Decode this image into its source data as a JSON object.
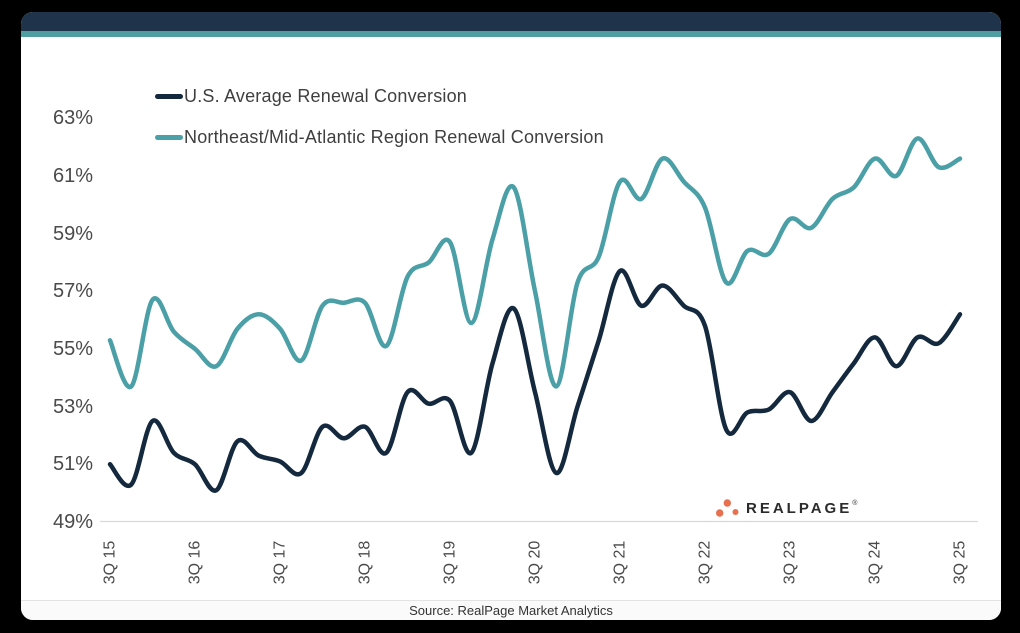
{
  "page": {
    "background_color": "#000000"
  },
  "header": {
    "bar_color": "#1F334A",
    "accent_color": "#4F9FA2"
  },
  "logo": {
    "text": "REALPAGE",
    "mark": "®",
    "dot_color": "#E8704E",
    "text_color": "#2b2b2b"
  },
  "footer": {
    "source_text": "Source: RealPage Market Analytics"
  },
  "chart_data": {
    "type": "line",
    "title": "",
    "xlabel": "",
    "ylabel": "",
    "grid": "none",
    "legend_position": "top-left",
    "axis_line_color": "#d9d9d9",
    "ylim": [
      49,
      63
    ],
    "y_ticks": [
      "63%",
      "61%",
      "59%",
      "57%",
      "55%",
      "53%",
      "51%",
      "49%"
    ],
    "x_tick_every": 4,
    "x_tick_labels_shown": [
      "3Q 15",
      "3Q 16",
      "3Q 17",
      "3Q 18",
      "3Q 19",
      "3Q 20",
      "3Q 21",
      "3Q 22",
      "3Q 23",
      "3Q 24",
      "3Q 25"
    ],
    "x": [
      "3Q 15",
      "4Q 15",
      "1Q 16",
      "2Q 16",
      "3Q 16",
      "4Q 16",
      "1Q 17",
      "2Q 17",
      "3Q 17",
      "4Q 17",
      "1Q 18",
      "2Q 18",
      "3Q 18",
      "4Q 18",
      "1Q 19",
      "2Q 19",
      "3Q 19",
      "4Q 19",
      "1Q 20",
      "2Q 20",
      "3Q 20",
      "4Q 20",
      "1Q 21",
      "2Q 21",
      "3Q 21",
      "4Q 21",
      "1Q 22",
      "2Q 22",
      "3Q 22",
      "4Q 22",
      "1Q 23",
      "2Q 23",
      "3Q 23",
      "4Q 23",
      "1Q 24",
      "2Q 24",
      "3Q 24",
      "4Q 24",
      "1Q 25",
      "2Q 25",
      "3Q 25"
    ],
    "series": [
      {
        "name": "U.S. Average Renewal Conversion",
        "color": "#14293D",
        "values": [
          51.0,
          50.3,
          52.5,
          51.4,
          51.0,
          50.1,
          51.8,
          51.3,
          51.1,
          50.7,
          52.3,
          51.9,
          52.3,
          51.4,
          53.5,
          53.1,
          53.2,
          51.4,
          54.5,
          56.4,
          53.5,
          50.7,
          53.0,
          55.3,
          57.7,
          56.5,
          57.2,
          56.5,
          55.8,
          52.2,
          52.8,
          52.9,
          53.5,
          52.5,
          53.5,
          54.5,
          55.4,
          54.4,
          55.4,
          55.2,
          56.2
        ]
      },
      {
        "name": "Northeast/Mid-Atlantic Region Renewal Conversion",
        "color": "#4B9FA6",
        "values": [
          55.3,
          53.7,
          56.7,
          55.6,
          55.0,
          54.4,
          55.7,
          56.2,
          55.7,
          54.6,
          56.5,
          56.6,
          56.6,
          55.1,
          57.5,
          58.0,
          58.7,
          55.9,
          58.8,
          60.6,
          57.0,
          53.7,
          57.3,
          58.2,
          60.8,
          60.2,
          61.6,
          60.8,
          59.9,
          57.3,
          58.4,
          58.3,
          59.5,
          59.2,
          60.2,
          60.6,
          61.6,
          61.0,
          62.3,
          61.3,
          61.6
        ]
      }
    ]
  }
}
